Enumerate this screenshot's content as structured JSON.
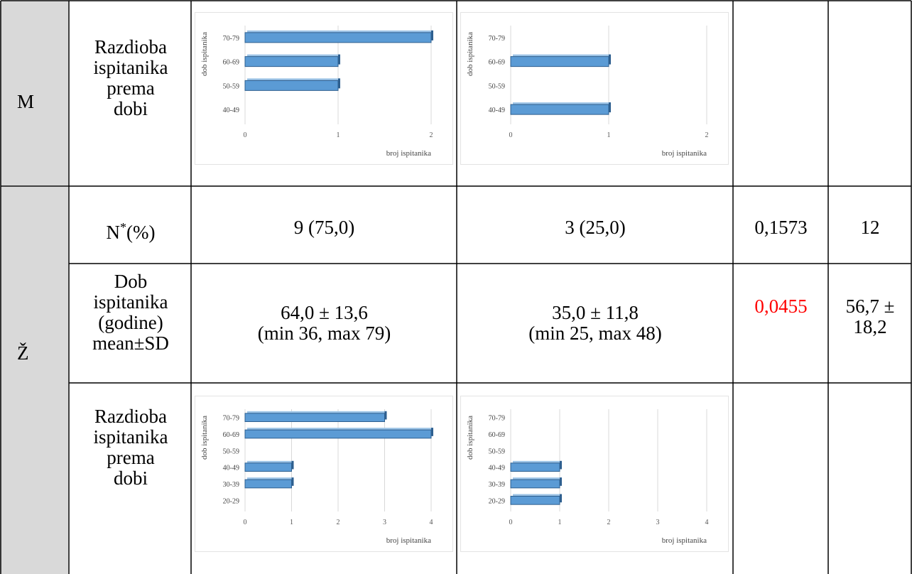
{
  "table": {
    "groups": {
      "m": "M",
      "z": "Ž"
    },
    "rows": {
      "m_dist_label": [
        "Razdioba",
        "ispitanika",
        "prema",
        "dobi"
      ],
      "z_n_label": "N",
      "z_n_sup": "*",
      "z_n_suffix": "(%)",
      "z_n_col1": "9 (75,0)",
      "z_n_col2": "3 (25,0)",
      "z_n_p": "0,1573",
      "z_n_total": "12",
      "z_age_label": [
        "Dob",
        "ispitanika",
        "(godine)",
        "mean±SD"
      ],
      "z_age_col1": [
        "64,0 ± 13,6",
        "(min 36, max 79)"
      ],
      "z_age_col2": [
        "35,0 ± 11,8",
        "(min 25, max 48)"
      ],
      "z_age_p": "0,0455",
      "z_age_total": [
        "56,7 ±",
        "18,2"
      ],
      "z_dist_label": [
        "Razdioba",
        "ispitanika",
        "prema",
        "dobi"
      ]
    },
    "colors": {
      "grey_col": "#d9d9d9",
      "highlight": "#ff0000",
      "bar": "#5b9bd5",
      "bar_edge": "#2e5f8f"
    }
  },
  "chart_data": [
    {
      "type": "bar",
      "orientation": "horizontal",
      "categories": [
        "70-79",
        "60-69",
        "50-59",
        "40-49"
      ],
      "values": [
        2,
        1,
        1,
        0
      ],
      "ylabel": "dob ispitanika",
      "xlabel": "broj ispitanika",
      "xticks": [
        "0",
        "1",
        "2"
      ],
      "xlim": [
        0,
        2
      ]
    },
    {
      "type": "bar",
      "orientation": "horizontal",
      "categories": [
        "70-79",
        "60-69",
        "50-59",
        "40-49"
      ],
      "values": [
        0,
        1,
        0,
        1
      ],
      "ylabel": "dob ispitanika",
      "xlabel": "broj ispitanika",
      "xticks": [
        "0",
        "1",
        "2"
      ],
      "xlim": [
        0,
        2
      ]
    },
    {
      "type": "bar",
      "orientation": "horizontal",
      "categories": [
        "70-79",
        "60-69",
        "50-59",
        "40-49",
        "30-39",
        "20-29"
      ],
      "values": [
        3,
        4,
        0,
        1,
        1,
        0
      ],
      "ylabel": "dob ispitanika",
      "xlabel": "broj ispitanika",
      "xticks": [
        "0",
        "1",
        "2",
        "3",
        "4"
      ],
      "xlim": [
        0,
        4
      ]
    },
    {
      "type": "bar",
      "orientation": "horizontal",
      "categories": [
        "70-79",
        "60-69",
        "50-59",
        "40-49",
        "30-39",
        "20-29"
      ],
      "values": [
        0,
        0,
        0,
        1,
        1,
        1
      ],
      "ylabel": "dob ispitanika",
      "xlabel": "broj ispitanika",
      "xticks": [
        "0",
        "1",
        "2",
        "3",
        "4"
      ],
      "xlim": [
        0,
        4
      ]
    }
  ]
}
